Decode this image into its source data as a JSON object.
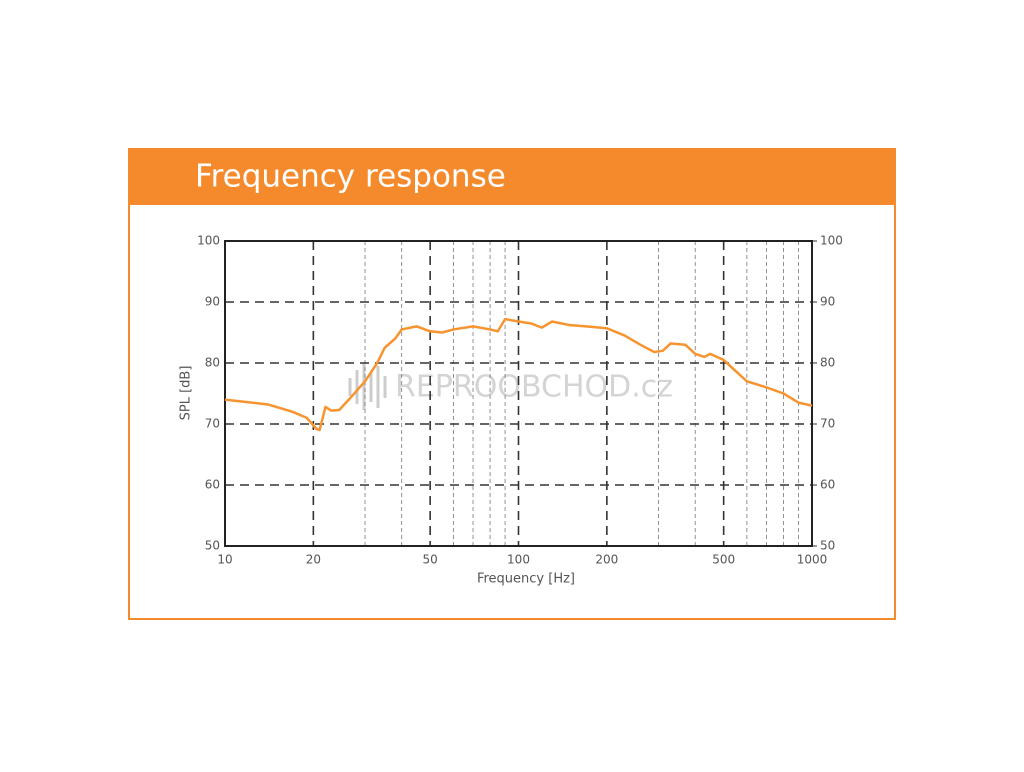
{
  "chart_data": {
    "type": "line",
    "title": "Frequency response",
    "xlabel": "Frequency [Hz]",
    "ylabel": "SPL [dB]",
    "watermark": "REPROOBCHOD.cz",
    "xscale": "log",
    "xlim": [
      10,
      1000
    ],
    "xticks": [
      10,
      20,
      50,
      100,
      200,
      500,
      1000
    ],
    "xminorticks": [
      30,
      40,
      60,
      70,
      80,
      90,
      300,
      400,
      600,
      700,
      800,
      900
    ],
    "ylim": [
      50,
      100
    ],
    "yticks": [
      50,
      60,
      70,
      80,
      90,
      100
    ],
    "y2lim": [
      50,
      100
    ],
    "y2ticks": [
      50,
      60,
      70,
      80,
      90,
      100
    ],
    "grid": true,
    "series": [
      {
        "name": "SPL",
        "color": "#f7942f",
        "x": [
          10,
          14,
          17,
          19,
          20.5,
          21,
          22,
          23,
          24.5,
          27,
          30,
          33,
          35,
          38,
          40,
          45,
          50,
          55,
          60,
          70,
          80,
          85,
          90,
          100,
          110,
          120,
          130,
          150,
          170,
          200,
          230,
          260,
          290,
          310,
          330,
          370,
          400,
          430,
          450,
          500,
          540,
          600,
          700,
          800,
          900,
          1000
        ],
        "values": [
          74,
          73.2,
          72,
          71,
          69.2,
          69,
          72.8,
          72.2,
          72.3,
          74.5,
          77,
          80,
          82.5,
          84,
          85.5,
          86,
          85.2,
          85,
          85.5,
          86,
          85.5,
          85.2,
          87.2,
          86.8,
          86.5,
          85.8,
          86.8,
          86.2,
          86,
          85.7,
          84.5,
          83,
          81.8,
          82,
          83.2,
          83,
          81.5,
          81,
          81.5,
          80.5,
          79,
          77,
          76,
          75,
          73.5,
          73
        ]
      }
    ]
  }
}
